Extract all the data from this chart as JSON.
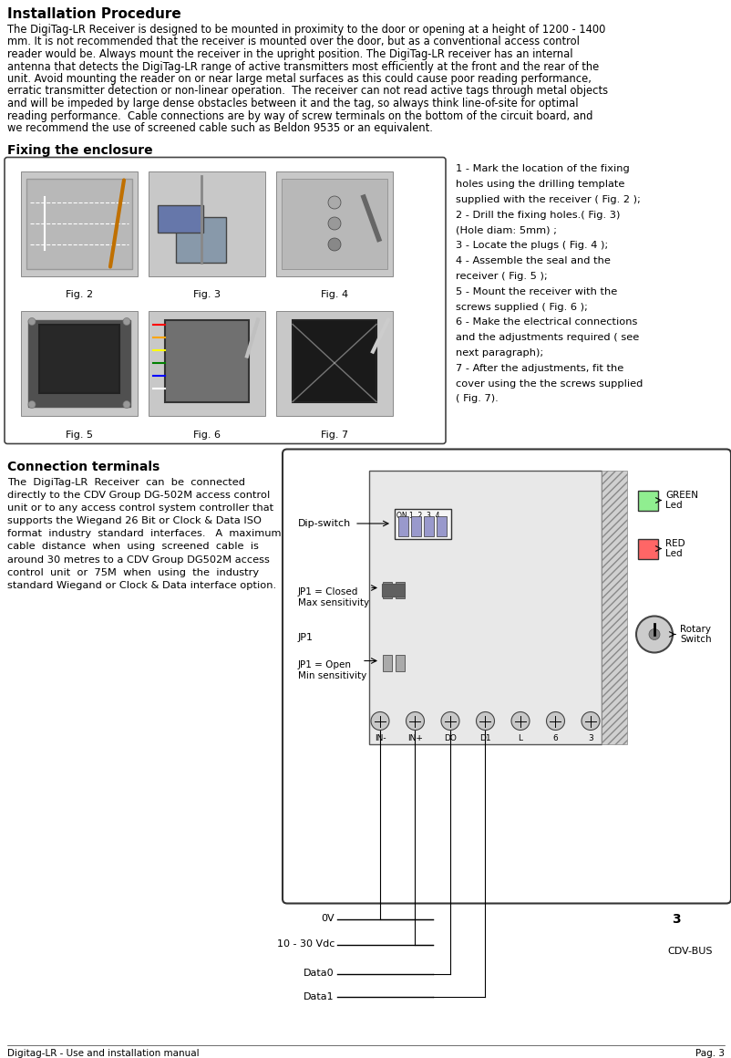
{
  "title": "Installation Procedure",
  "body_lines": [
    "The DigiTag-LR Receiver is designed to be mounted in proximity to the door or opening at a height of 1200 - 1400",
    "mm. It is not recommended that the receiver is mounted over the door, but as a conventional access control",
    "reader would be. Always mount the receiver in the upright position. The DigiTag-LR receiver has an internal",
    "antenna that detects the DigiTag-LR range of active transmitters most efficiently at the front and the rear of the",
    "unit. Avoid mounting the reader on or near large metal surfaces as this could cause poor reading performance,",
    "erratic transmitter detection or non-linear operation.  The receiver can not read active tags through metal objects",
    "and will be impeded by large dense obstacles between it and the tag, so always think line-of-site for optimal",
    "reading performance.  Cable connections are by way of screw terminals on the bottom of the circuit board, and",
    "we recommend the use of screened cable such as Beldon 9535 or an equivalent."
  ],
  "fixing_title": "Fixing the enclosure",
  "fig_labels": [
    "Fig. 2",
    "Fig. 3",
    "Fig. 4",
    "Fig. 5",
    "Fig. 6",
    "Fig. 7"
  ],
  "instr_lines": [
    "1 - Mark the location of the fixing",
    "holes using the drilling template",
    "supplied with the receiver ( Fig. 2 );",
    "2 - Drill the fixing holes.( Fig. 3)",
    "(Hole diam: 5mm) ;",
    "3 - Locate the plugs ( Fig. 4 );",
    "4 - Assemble the seal and the",
    "receiver ( Fig. 5 );",
    "5 - Mount the receiver with the",
    "screws supplied ( Fig. 6 );",
    "6 - Make the electrical connections",
    "and the adjustments required ( see",
    "next paragraph);",
    "7 - After the adjustments, fit the",
    "cover using the the screws supplied",
    "( Fig. 7)."
  ],
  "connection_title": "Connection terminals",
  "conn_text_lines": [
    "The  DigiTag-LR  Receiver  can  be  connected",
    "directly to the CDV Group DG-502M access control",
    "unit or to any access control system controller that",
    "supports the Wiegand 26 Bit or Clock & Data ISO",
    "format  industry  standard  interfaces.   A  maximum",
    "cable  distance  when  using  screened  cable  is",
    "around 30 metres to a CDV Group DG502M access",
    "control  unit  or  75M  when  using  the  industry",
    "standard Wiegand or Clock & Data interface option."
  ],
  "terminal_labels": [
    "IN-",
    "IN+",
    "DO",
    "D1",
    "L",
    "6",
    "3"
  ],
  "signal_labels_left": [
    "0V",
    "10 - 30 Vdc",
    "Data0",
    "Data1"
  ],
  "cdv_bus_label": "CDV-BUS",
  "three_label": "3",
  "dip_label": "Dip-switch",
  "jp1_closed_label": "JP1 = Closed\nMax sensitivity",
  "jp1_open_label": "JP1 = Open\nMin sensitivity",
  "jp1_label": "JP1",
  "green_led_label": "GREEN\nLed",
  "red_led_label": "RED\nLed",
  "rotary_label": "Rotary\nSwitch",
  "footer_left": "Digitag-LR - Use and installation manual",
  "footer_right": "Pag. 3",
  "bg_color": "#ffffff",
  "text_color": "#000000",
  "gray_fig": "#c8c8c8",
  "pcb_color": "#e8e8e8",
  "circ_edge": "#333333"
}
